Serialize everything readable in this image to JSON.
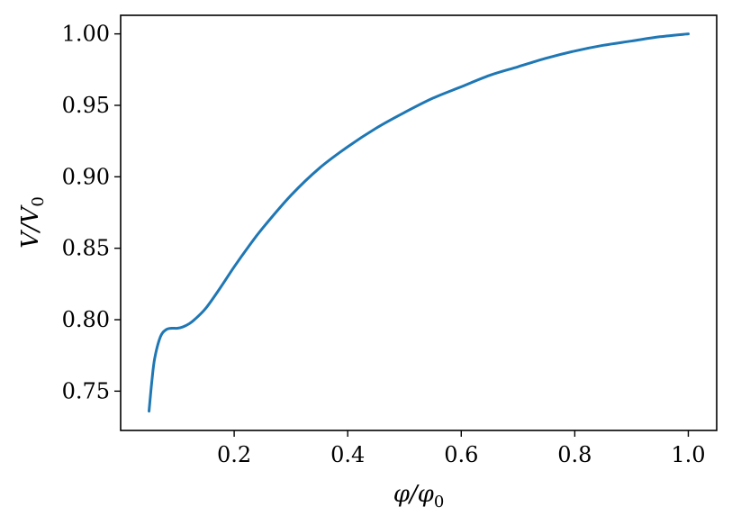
{
  "chart_data": {
    "type": "line",
    "title": "",
    "xlabel": {
      "main": "φ/φ",
      "sub": "0"
    },
    "ylabel": {
      "main": "V/V",
      "sub": "0"
    },
    "xlim": [
      0.0,
      1.05
    ],
    "ylim": [
      0.7225,
      1.013
    ],
    "grid": false,
    "legend": "none",
    "xticks": [
      0.2,
      0.4,
      0.6,
      0.8,
      1.0
    ],
    "xtick_labels": [
      "0.2",
      "0.4",
      "0.6",
      "0.8",
      "1.0"
    ],
    "yticks": [
      0.75,
      0.8,
      0.85,
      0.9,
      0.95,
      1.0
    ],
    "ytick_labels": [
      "0.75",
      "0.80",
      "0.85",
      "0.90",
      "0.95",
      "1.00"
    ],
    "line_color": "#1f77b4",
    "series": [
      {
        "x": [
          0.05,
          0.055,
          0.06,
          0.07,
          0.08,
          0.09,
          0.1,
          0.11,
          0.12,
          0.13,
          0.15,
          0.175,
          0.2,
          0.225,
          0.25,
          0.3,
          0.35,
          0.4,
          0.45,
          0.5,
          0.55,
          0.6,
          0.65,
          0.7,
          0.75,
          0.8,
          0.85,
          0.9,
          0.95,
          1.0
        ],
        "y": [
          0.736,
          0.757,
          0.773,
          0.788,
          0.793,
          0.794,
          0.794,
          0.795,
          0.797,
          0.8,
          0.808,
          0.822,
          0.837,
          0.851,
          0.864,
          0.887,
          0.906,
          0.921,
          0.934,
          0.945,
          0.955,
          0.963,
          0.971,
          0.977,
          0.983,
          0.988,
          0.992,
          0.995,
          0.998,
          1.0
        ]
      }
    ]
  }
}
